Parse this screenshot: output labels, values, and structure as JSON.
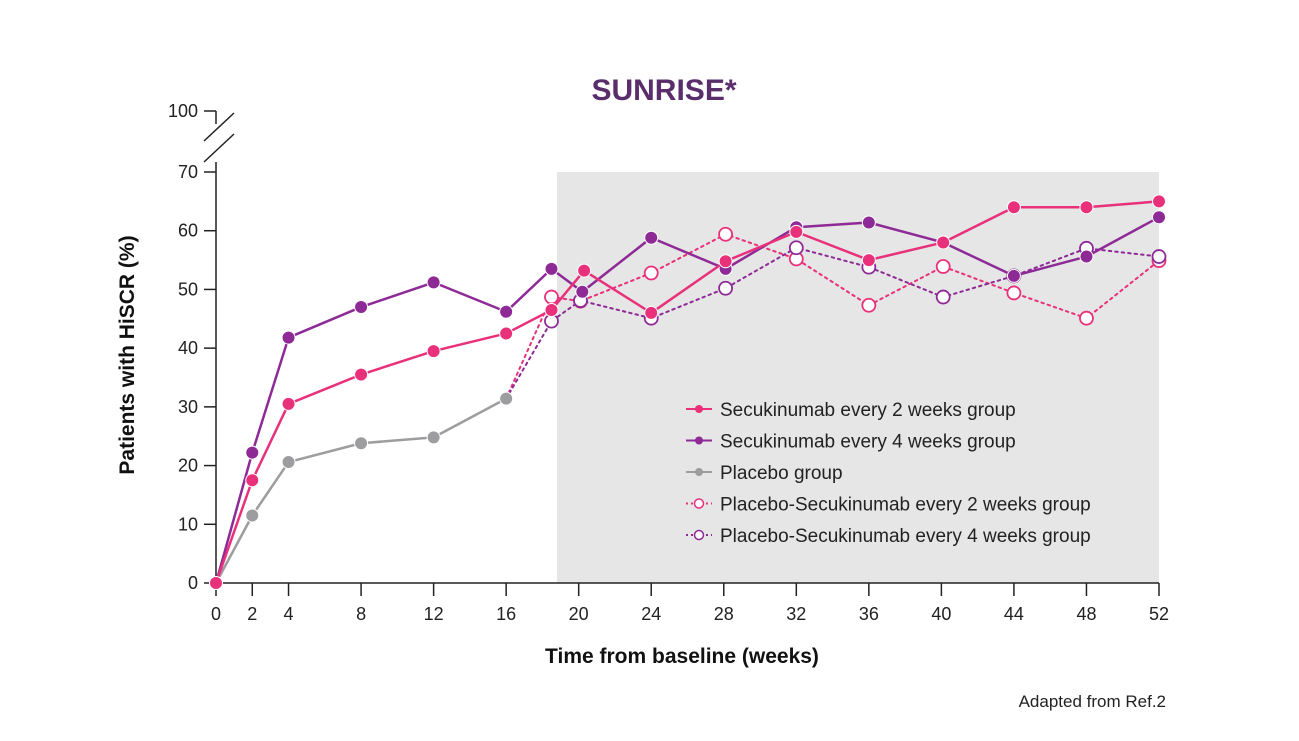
{
  "chart_data": {
    "type": "line",
    "title": "SUNRISE*",
    "title_color": "#5a2d6b",
    "xlabel": "Time from baseline (weeks)",
    "ylabel": "Patients with HiSCR (%)",
    "xticks": [
      0,
      2,
      4,
      8,
      12,
      16,
      20,
      24,
      28,
      32,
      36,
      40,
      44,
      48,
      52
    ],
    "yticks": [
      0,
      10,
      20,
      30,
      40,
      50,
      60,
      70
    ],
    "ytick_break_label": "100",
    "xlim": [
      0,
      52
    ],
    "ylim": [
      0,
      70
    ],
    "shaded_region_x": [
      18.8,
      52
    ],
    "shaded_color": "#e6e6e6",
    "series": [
      {
        "name": "Secukinumab every 2 weeks group",
        "color": "#e8317a",
        "style": "solid",
        "marker": "filled",
        "x": [
          0,
          2,
          4,
          8,
          12,
          16,
          18.5,
          20.3,
          24,
          28.1,
          32,
          36,
          40.1,
          44,
          48,
          52
        ],
        "y": [
          0,
          17.5,
          30.5,
          35.5,
          39.5,
          42.5,
          46.5,
          53.2,
          46,
          54.8,
          59.8,
          55,
          58,
          64,
          64,
          65
        ]
      },
      {
        "name": "Secukinumab every 4 weeks group",
        "color": "#8e2a96",
        "style": "solid",
        "marker": "filled",
        "x": [
          0,
          2,
          4,
          8,
          12,
          16,
          18.5,
          20.2,
          24,
          28.1,
          32,
          36,
          40.1,
          44,
          48,
          52
        ],
        "y": [
          0,
          22.2,
          41.8,
          47,
          51.2,
          46.2,
          53.5,
          49.6,
          58.8,
          53.5,
          60.6,
          61.4,
          58,
          52.3,
          55.6,
          62.3
        ]
      },
      {
        "name": "Placebo group",
        "color": "#9d9da0",
        "style": "solid",
        "marker": "filled",
        "x": [
          0,
          2,
          4,
          8,
          12,
          16
        ],
        "y": [
          0,
          11.5,
          20.6,
          23.8,
          24.8,
          31.4
        ]
      },
      {
        "name": "Placebo-Secukinumab every 2 weeks group",
        "color": "#e8317a",
        "style": "dotted",
        "marker": "open",
        "x": [
          16,
          18.5,
          20.1,
          24,
          28.1,
          32,
          36,
          40.1,
          44,
          48,
          52
        ],
        "y": [
          31.4,
          48.7,
          48,
          52.8,
          59.4,
          55.2,
          47.3,
          53.9,
          49.4,
          45.1,
          54.9
        ]
      },
      {
        "name": "Placebo-Secukinumab every 4 weeks group",
        "color": "#8e2a96",
        "style": "dotted",
        "marker": "open",
        "x": [
          16,
          18.5,
          20.1,
          24,
          28.1,
          32,
          36,
          40.1,
          44,
          48,
          52
        ],
        "y": [
          31.4,
          44.6,
          48.1,
          45.1,
          50.2,
          57.1,
          53.8,
          48.7,
          52.3,
          57,
          55.6
        ]
      }
    ],
    "legend_position": "bottom-right",
    "footnote": "Adapted from Ref.2"
  }
}
